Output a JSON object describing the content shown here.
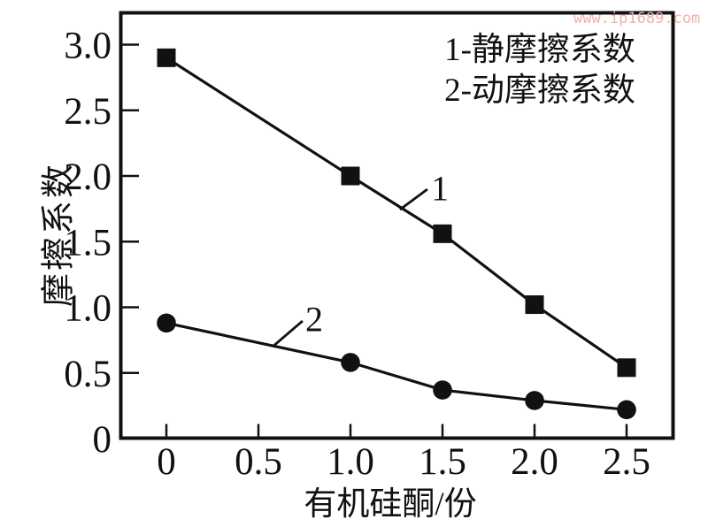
{
  "watermark": {
    "text": "www.ip1689.com",
    "color": "#F2AFAD"
  },
  "colors": {
    "ink": "#111111",
    "background": "#ffffff"
  },
  "chart_data": {
    "type": "line",
    "title": "",
    "xlabel": "有机硅酮/份",
    "ylabel": "摩擦系数",
    "x": [
      0,
      1.0,
      1.5,
      2.0,
      2.5
    ],
    "series": [
      {
        "name": "静摩擦系数",
        "index_label": "1",
        "marker": "square",
        "values": [
          2.9,
          2.0,
          1.56,
          1.02,
          0.54
        ]
      },
      {
        "name": "动摩擦系数",
        "index_label": "2",
        "marker": "circle",
        "values": [
          0.88,
          0.58,
          0.37,
          0.29,
          0.22
        ]
      }
    ],
    "legend": [
      "1-静摩擦系数",
      "2-动摩擦系数"
    ],
    "legend_position": "top-right-inside",
    "xlim": [
      -0.26,
      2.75
    ],
    "ylim": [
      0,
      3.24
    ],
    "xticks": {
      "values": [
        0,
        0.5,
        1.0,
        1.5,
        2.0,
        2.5
      ],
      "labels": [
        "0",
        "0.5",
        "1.0",
        "1.5",
        "2.0",
        "2.5"
      ]
    },
    "yticks": {
      "values": [
        0,
        0.5,
        1.0,
        1.5,
        2.0,
        2.5,
        3.0
      ],
      "labels": [
        "0",
        "0.5",
        "1.0",
        "1.5",
        "2.0",
        "2.5",
        "3.0"
      ]
    },
    "grid": false,
    "annotations": [
      {
        "text": "1",
        "series": 0,
        "label_at": [
          1.486,
          1.906
        ],
        "pointer_from": [
          1.418,
          1.899
        ],
        "pointer_to": [
          1.269,
          1.744
        ]
      },
      {
        "text": "2",
        "series": 1,
        "label_at": [
          0.803,
          0.909
        ],
        "pointer_from": [
          0.74,
          0.896
        ],
        "pointer_to": [
          0.577,
          0.7
        ]
      }
    ]
  }
}
